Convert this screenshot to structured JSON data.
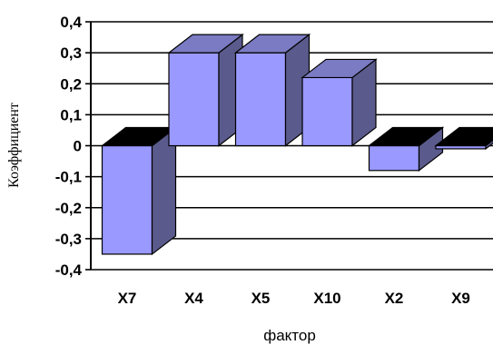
{
  "chart_data": {
    "type": "bar",
    "categories": [
      "X7",
      "X4",
      "X5",
      "X10",
      "X2",
      "X9"
    ],
    "values": [
      -0.35,
      0.3,
      0.3,
      0.22,
      -0.08,
      -0.01
    ],
    "yticks": [
      "0,4",
      "0,3",
      "0,2",
      "0,1",
      "0",
      "-0,1",
      "-0,2",
      "-0,3",
      "-0,4"
    ],
    "ylim": [
      -0.4,
      0.4
    ],
    "xlabel": "фактор",
    "ylabel": "Коэффициент",
    "grid": true,
    "legend": "none",
    "colors": {
      "bar_front": "#9999ff",
      "bar_side": "#5a5a8c",
      "bar_top": "#7b7bc4",
      "bar_top_negative": "#000000",
      "grid": "#000000",
      "background": "#ffffff"
    }
  }
}
